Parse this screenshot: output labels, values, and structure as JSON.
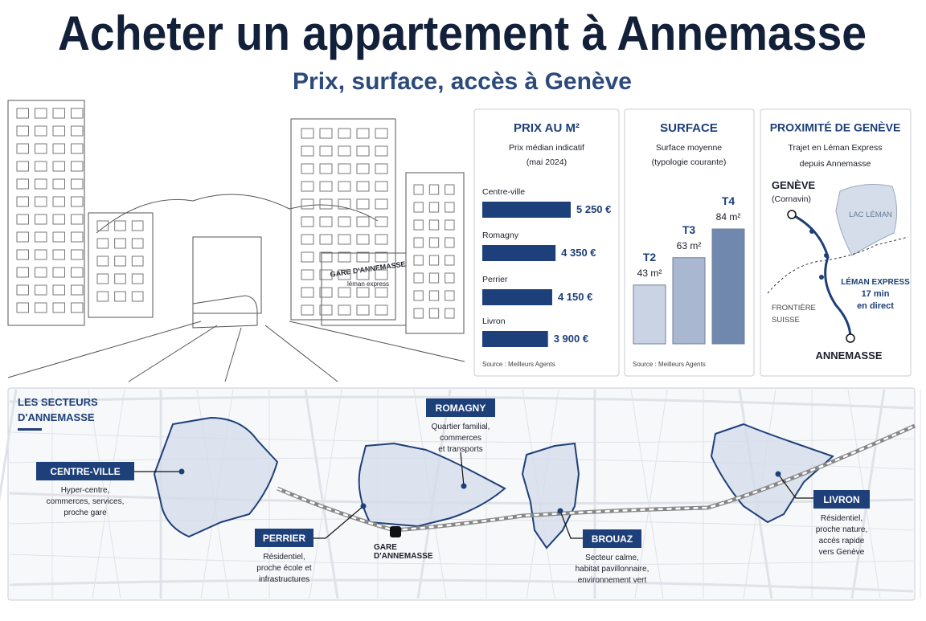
{
  "header": {
    "title": "Acheter un appartement à Annemasse",
    "subtitle": "Prix, surface, accès à Genève"
  },
  "illustration": {
    "station_sign": "GARE D'ANNEMASSE",
    "station_brand": "léman express"
  },
  "chart_data": [
    {
      "type": "hbar",
      "title": "PRIX AU M²",
      "subtitle": [
        "Prix médian indicatif",
        "(mai 2024)"
      ],
      "categories": [
        "Centre-ville",
        "Romagny",
        "Perrier",
        "Livron"
      ],
      "values": [
        5250,
        4350,
        4150,
        3900
      ],
      "value_labels": [
        "5 250 €",
        "4 350 €",
        "4 150 €",
        "3 900 €"
      ],
      "color": "#1d3f7a",
      "source": "Source : Meilleurs Agents"
    },
    {
      "type": "bar",
      "title": "SURFACE",
      "subtitle": [
        "Surface moyenne",
        "(typologie courante)"
      ],
      "categories": [
        "T2",
        "T3",
        "T4"
      ],
      "values": [
        43,
        63,
        84
      ],
      "value_labels": [
        "43 m²",
        "63 m²",
        "84 m²"
      ],
      "colors": [
        "#c9d3e3",
        "#a9b8d0",
        "#7088ad"
      ],
      "source": "Source : Meilleurs Agents"
    }
  ],
  "proximity": {
    "title": "PROXIMITÉ DE GENÈVE",
    "subtitle": [
      "Trajet en Léman Express",
      "depuis Annemasse"
    ],
    "origin": "GENÈVE",
    "origin_station": "(Cornavin)",
    "lake": "LAC LÉMAN",
    "border": [
      "FRONTIÈRE",
      "SUISSE"
    ],
    "line": [
      "LÉMAN EXPRESS",
      "17 min",
      "en direct"
    ],
    "destination": "ANNEMASSE"
  },
  "map": {
    "title": [
      "LES SECTEURS",
      "D'ANNEMASSE"
    ],
    "station": [
      "GARE",
      "D'ANNEMASSE"
    ],
    "sectors": [
      {
        "name": "CENTRE-VILLE",
        "description": [
          "Hyper-centre,",
          "commerces, services,",
          "proche gare"
        ]
      },
      {
        "name": "ROMAGNY",
        "description": [
          "Quartier familial,",
          "commerces",
          "et transports"
        ]
      },
      {
        "name": "PERRIER",
        "description": [
          "Résidentiel,",
          "proche école et",
          "infrastructures"
        ]
      },
      {
        "name": "BROUAZ",
        "description": [
          "Secteur calme,",
          "habitat pavillonnaire,",
          "environnement vert"
        ]
      },
      {
        "name": "LIVRON",
        "description": [
          "Résidentiel,",
          "proche nature,",
          "accès rapide",
          "vers Genève"
        ]
      }
    ]
  }
}
